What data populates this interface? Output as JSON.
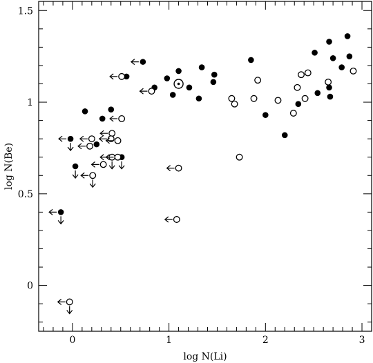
{
  "chart_data": {
    "type": "scatter",
    "xlabel": "log N(Li)",
    "ylabel": "log N(Be)",
    "xlim": [
      -0.35,
      3.1
    ],
    "ylim": [
      -0.25,
      1.55
    ],
    "xticks": [
      0,
      1,
      2,
      3
    ],
    "xtick_labels": [
      "0",
      "1",
      "2",
      "3"
    ],
    "yticks": [
      0,
      0.5,
      1,
      1.5
    ],
    "ytick_labels": [
      "0",
      "0.5",
      "1",
      "1.5"
    ],
    "grid": false,
    "legend": "none",
    "series": [
      {
        "marker": "filled-circle",
        "color": "#000000",
        "points": [
          {
            "x": 0.73,
            "y": 1.22,
            "li_upper": true
          },
          {
            "x": 0.56,
            "y": 1.14
          },
          {
            "x": 0.98,
            "y": 1.13
          },
          {
            "x": 0.13,
            "y": 0.95
          },
          {
            "x": 0.4,
            "y": 0.96
          },
          {
            "x": 0.31,
            "y": 0.91
          },
          {
            "x": -0.02,
            "y": 0.8,
            "li_upper": true,
            "be_upper": true
          },
          {
            "x": 0.25,
            "y": 0.77
          },
          {
            "x": 0.51,
            "y": 0.7,
            "be_upper": true
          },
          {
            "x": 0.03,
            "y": 0.65,
            "be_upper": true
          },
          {
            "x": -0.12,
            "y": 0.4,
            "li_upper": true,
            "be_upper": true
          },
          {
            "x": 0.85,
            "y": 1.08
          },
          {
            "x": 1.1,
            "y": 1.17
          },
          {
            "x": 1.04,
            "y": 1.04
          },
          {
            "x": 1.21,
            "y": 1.08
          },
          {
            "x": 1.31,
            "y": 1.02
          },
          {
            "x": 1.34,
            "y": 1.19
          },
          {
            "x": 1.47,
            "y": 1.15
          },
          {
            "x": 1.46,
            "y": 1.11
          },
          {
            "x": 1.85,
            "y": 1.23
          },
          {
            "x": 2.0,
            "y": 0.93
          },
          {
            "x": 2.2,
            "y": 0.82
          },
          {
            "x": 2.34,
            "y": 0.99
          },
          {
            "x": 2.51,
            "y": 1.27
          },
          {
            "x": 2.54,
            "y": 1.05
          },
          {
            "x": 2.66,
            "y": 1.33
          },
          {
            "x": 2.66,
            "y": 1.08
          },
          {
            "x": 2.67,
            "y": 1.03
          },
          {
            "x": 2.7,
            "y": 1.24
          },
          {
            "x": 2.79,
            "y": 1.19
          },
          {
            "x": 2.85,
            "y": 1.36
          },
          {
            "x": 2.87,
            "y": 1.25
          }
        ]
      },
      {
        "marker": "open-circle",
        "color": "#000000",
        "points": [
          {
            "x": 0.51,
            "y": 1.14,
            "li_upper": true
          },
          {
            "x": 0.82,
            "y": 1.06,
            "li_upper": true
          },
          {
            "x": 0.51,
            "y": 0.91,
            "li_upper": true
          },
          {
            "x": 0.41,
            "y": 0.83,
            "li_upper": true
          },
          {
            "x": 0.2,
            "y": 0.8,
            "li_upper": true
          },
          {
            "x": 0.4,
            "y": 0.8,
            "li_upper": true
          },
          {
            "x": 0.47,
            "y": 0.79,
            "li_upper": true
          },
          {
            "x": 0.18,
            "y": 0.76,
            "li_upper": true
          },
          {
            "x": 0.41,
            "y": 0.7,
            "li_upper": true,
            "be_upper": true
          },
          {
            "x": 0.47,
            "y": 0.7,
            "li_upper": true
          },
          {
            "x": 0.32,
            "y": 0.66,
            "li_upper": true
          },
          {
            "x": 0.21,
            "y": 0.6,
            "li_upper": true,
            "be_upper": true
          },
          {
            "x": 1.1,
            "y": 0.64,
            "li_upper": true
          },
          {
            "x": 1.08,
            "y": 0.36,
            "li_upper": true
          },
          {
            "x": -0.03,
            "y": -0.09,
            "li_upper": true,
            "be_upper": true
          },
          {
            "x": 1.65,
            "y": 1.02
          },
          {
            "x": 1.68,
            "y": 0.99
          },
          {
            "x": 1.73,
            "y": 0.7
          },
          {
            "x": 1.88,
            "y": 1.02
          },
          {
            "x": 1.92,
            "y": 1.12
          },
          {
            "x": 2.13,
            "y": 1.01
          },
          {
            "x": 2.29,
            "y": 0.94
          },
          {
            "x": 2.33,
            "y": 1.08
          },
          {
            "x": 2.37,
            "y": 1.15
          },
          {
            "x": 2.41,
            "y": 1.02
          },
          {
            "x": 2.44,
            "y": 1.16
          },
          {
            "x": 2.65,
            "y": 1.11
          },
          {
            "x": 2.91,
            "y": 1.17
          }
        ]
      },
      {
        "marker": "sun-symbol",
        "color": "#000000",
        "points": [
          {
            "x": 1.1,
            "y": 1.1
          }
        ]
      }
    ]
  }
}
